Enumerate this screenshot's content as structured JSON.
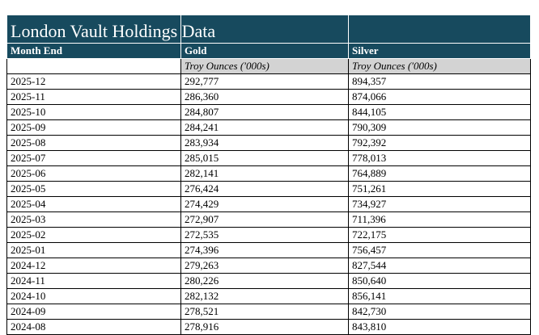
{
  "chart_data": {
    "type": "table",
    "title": "London Vault Holdings Data",
    "columns": [
      "Month End",
      "Gold",
      "Silver"
    ],
    "units": {
      "month": "",
      "gold": "Troy Ounces ('000s)",
      "silver": "Troy Ounces ('000s)"
    },
    "rows": [
      [
        "2025-12",
        "292,777",
        "894,357"
      ],
      [
        "2025-11",
        "286,360",
        "874,066"
      ],
      [
        "2025-10",
        "284,807",
        "844,105"
      ],
      [
        "2025-09",
        "284,241",
        "790,309"
      ],
      [
        "2025-08",
        "283,934",
        "792,392"
      ],
      [
        "2025-07",
        "285,015",
        "778,013"
      ],
      [
        "2025-06",
        "282,141",
        "764,889"
      ],
      [
        "2025-05",
        "276,424",
        "751,261"
      ],
      [
        "2025-04",
        "274,429",
        "734,927"
      ],
      [
        "2025-03",
        "272,907",
        "711,396"
      ],
      [
        "2025-02",
        "272,535",
        "722,175"
      ],
      [
        "2025-01",
        "274,396",
        "756,457"
      ],
      [
        "2024-12",
        "279,263",
        "827,544"
      ],
      [
        "2024-11",
        "280,226",
        "850,640"
      ],
      [
        "2024-10",
        "282,132",
        "856,141"
      ],
      [
        "2024-09",
        "278,521",
        "842,730"
      ],
      [
        "2024-08",
        "278,916",
        "843,810"
      ]
    ],
    "layout_hints": {
      "header_fill": "#174A5E",
      "header_text": "#ffffff",
      "unit_row_fill": "#D3D3D3",
      "grid_color_data": "#000000",
      "grid_color_header": "#ffffff",
      "last_row_clipped": true
    }
  }
}
